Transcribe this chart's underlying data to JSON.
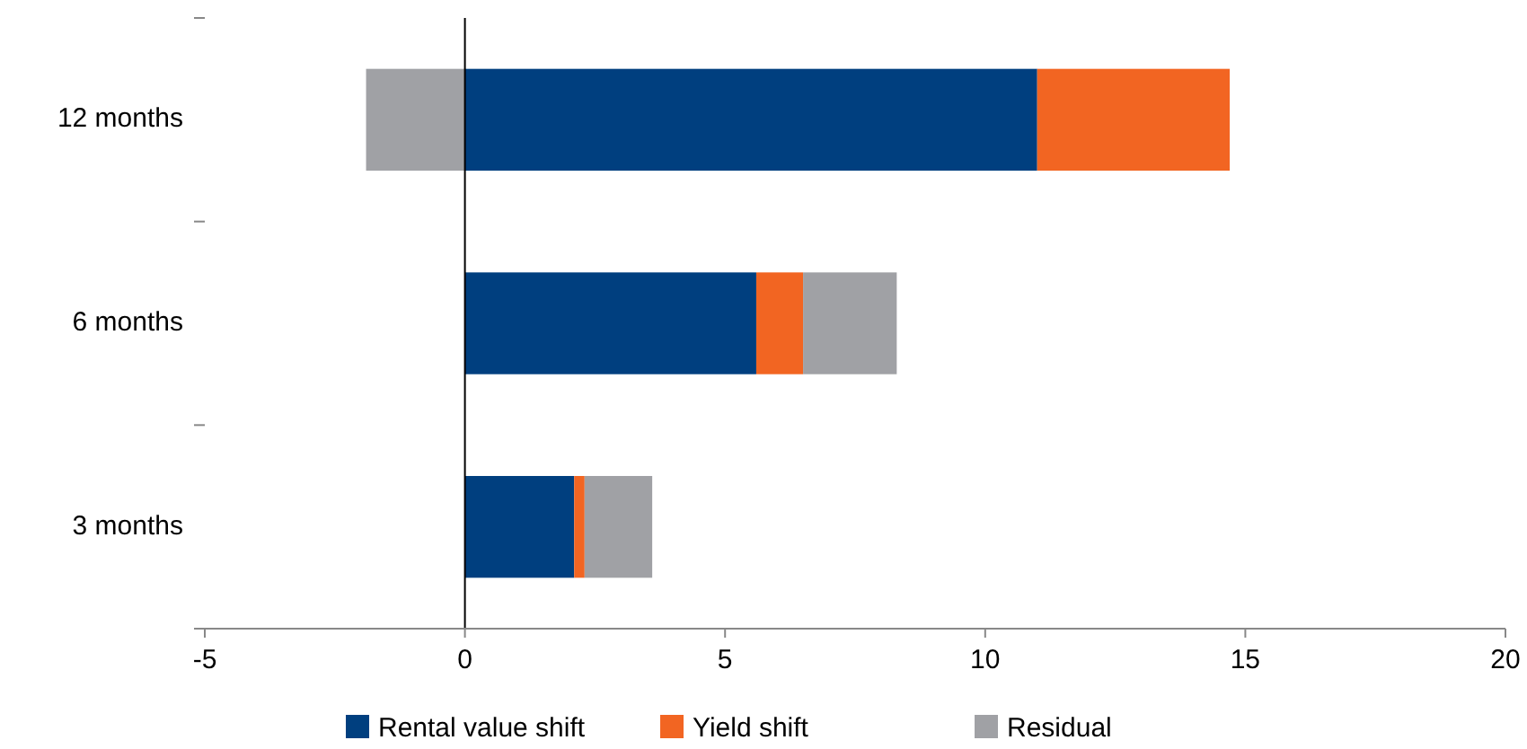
{
  "chart_data": {
    "type": "bar",
    "orientation": "horizontal",
    "stacked": true,
    "categories": [
      "12 months",
      "6 months",
      "3 months"
    ],
    "series": [
      {
        "name": "Rental value shift",
        "color": "#003f7f",
        "values": [
          11.0,
          5.6,
          2.1
        ]
      },
      {
        "name": "Yield shift",
        "color": "#f26522",
        "values": [
          3.7,
          0.9,
          0.2
        ]
      },
      {
        "name": "Residual",
        "color": "#a0a1a5",
        "values": [
          -1.9,
          1.8,
          1.3
        ]
      }
    ],
    "xlim": [
      -5,
      20
    ],
    "xticks": [
      -5,
      0,
      5,
      10,
      15,
      20
    ],
    "legend": "bottom"
  }
}
